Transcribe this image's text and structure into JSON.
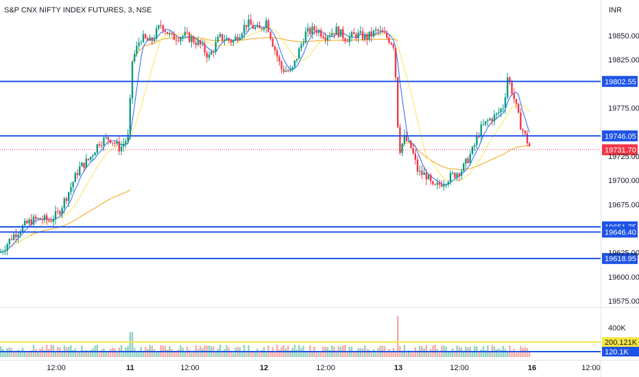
{
  "header": {
    "symbol_title": "S&P CNX NIFTY INDEX FUTURES, 3, NSE",
    "currency": "INR"
  },
  "chart_data": {
    "type": "candlestick",
    "price_axis": {
      "ticks": [
        19850,
        19825,
        19775,
        19725,
        19700,
        19675,
        19625,
        19600,
        19575
      ],
      "tick_labels": [
        "19850.00",
        "19825.00",
        "19775.00",
        "19725.00",
        "19700.00",
        "19675.00",
        "19625.00",
        "19600.00",
        "19575.00"
      ],
      "range": [
        19565,
        19887
      ]
    },
    "time_axis": {
      "labels": [
        "12:00",
        "11",
        "12:00",
        "12",
        "12:00",
        "13",
        "12:00",
        "16",
        "12:00"
      ],
      "bold": [
        false,
        true,
        false,
        true,
        false,
        true,
        false,
        true,
        false
      ]
    },
    "horizontal_levels": [
      {
        "value": 19802.55,
        "label": "19802.55",
        "color": "#1e53e5"
      },
      {
        "value": 19746.05,
        "label": "19746.05",
        "color": "#1e53e5"
      },
      {
        "value": 19651.75,
        "label": "19651.75",
        "color": "#1e53e5"
      },
      {
        "value": 19646.4,
        "label": "19646.40",
        "color": "#1e53e5"
      },
      {
        "value": 19618.95,
        "label": "19618.95",
        "color": "#1e53e5"
      }
    ],
    "last_price": {
      "value": 19731.7,
      "label": "19731.70",
      "color": "#f23645"
    },
    "session_points": [
      {
        "x": 0,
        "p": 19625
      },
      {
        "x": 8,
        "p": 19632
      },
      {
        "x": 18,
        "p": 19642
      },
      {
        "x": 30,
        "p": 19650
      },
      {
        "x": 45,
        "p": 19658
      },
      {
        "x": 60,
        "p": 19660
      },
      {
        "x": 72,
        "p": 19658
      },
      {
        "x": 85,
        "p": 19666
      },
      {
        "x": 100,
        "p": 19688
      },
      {
        "x": 115,
        "p": 19712
      },
      {
        "x": 130,
        "p": 19722
      },
      {
        "x": 145,
        "p": 19740
      },
      {
        "x": 160,
        "p": 19744
      },
      {
        "x": 175,
        "p": 19733
      },
      {
        "x": 188,
        "p": 19746
      },
      {
        "x": 192,
        "p": 19822
      },
      {
        "x": 205,
        "p": 19848
      },
      {
        "x": 220,
        "p": 19843
      },
      {
        "x": 235,
        "p": 19862
      },
      {
        "x": 250,
        "p": 19848
      },
      {
        "x": 270,
        "p": 19850
      },
      {
        "x": 290,
        "p": 19842
      },
      {
        "x": 305,
        "p": 19828
      },
      {
        "x": 320,
        "p": 19848
      },
      {
        "x": 340,
        "p": 19844
      },
      {
        "x": 360,
        "p": 19863
      },
      {
        "x": 378,
        "p": 19855
      },
      {
        "x": 388,
        "p": 19866
      },
      {
        "x": 398,
        "p": 19842
      },
      {
        "x": 410,
        "p": 19816
      },
      {
        "x": 425,
        "p": 19812
      },
      {
        "x": 435,
        "p": 19832
      },
      {
        "x": 445,
        "p": 19852
      },
      {
        "x": 460,
        "p": 19857
      },
      {
        "x": 475,
        "p": 19850
      },
      {
        "x": 490,
        "p": 19856
      },
      {
        "x": 505,
        "p": 19847
      },
      {
        "x": 520,
        "p": 19851
      },
      {
        "x": 535,
        "p": 19848
      },
      {
        "x": 550,
        "p": 19855
      },
      {
        "x": 565,
        "p": 19848
      },
      {
        "x": 575,
        "p": 19840
      },
      {
        "x": 582,
        "p": 19730
      },
      {
        "x": 590,
        "p": 19744
      },
      {
        "x": 600,
        "p": 19733
      },
      {
        "x": 610,
        "p": 19708
      },
      {
        "x": 622,
        "p": 19705
      },
      {
        "x": 632,
        "p": 19691
      },
      {
        "x": 645,
        "p": 19698
      },
      {
        "x": 660,
        "p": 19705
      },
      {
        "x": 675,
        "p": 19712
      },
      {
        "x": 690,
        "p": 19732
      },
      {
        "x": 700,
        "p": 19752
      },
      {
        "x": 712,
        "p": 19762
      },
      {
        "x": 725,
        "p": 19768
      },
      {
        "x": 735,
        "p": 19778
      },
      {
        "x": 740,
        "p": 19808
      },
      {
        "x": 748,
        "p": 19790
      },
      {
        "x": 758,
        "p": 19760
      },
      {
        "x": 768,
        "p": 19742
      },
      {
        "x": 775,
        "p": 19731
      }
    ],
    "volume_axis": {
      "ticks": [
        400000
      ],
      "tick_labels": [
        "400K"
      ],
      "levels": [
        {
          "value": 200121,
          "label": "200.121K",
          "color": "#f5e642"
        },
        {
          "value": 120100,
          "label": "120.1K",
          "color": "#1e53e5"
        }
      ]
    }
  }
}
